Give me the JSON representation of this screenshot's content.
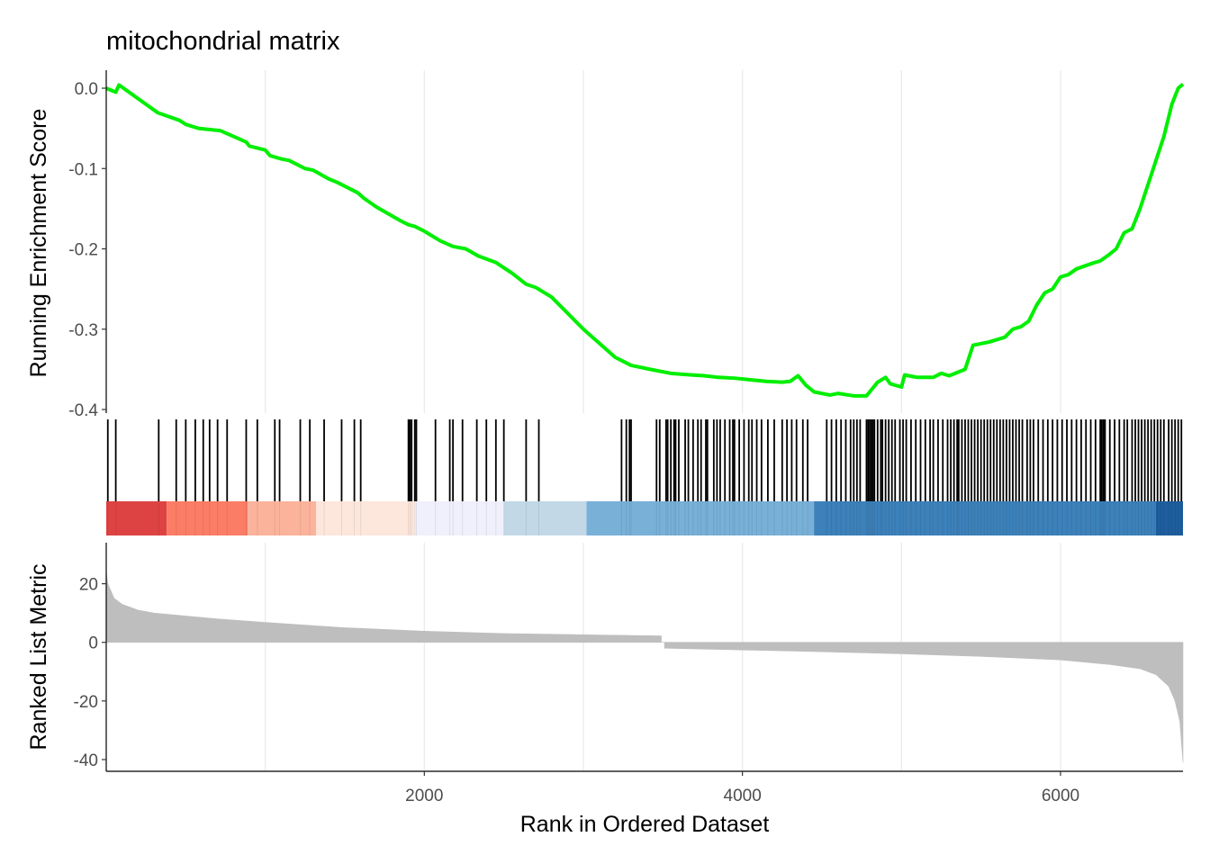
{
  "chart_data": {
    "type": "line",
    "title": "mitochondrial matrix",
    "xlabel": "Rank in Ordered Dataset",
    "xlim": [
      0,
      6770
    ],
    "x_ticks": [
      2000,
      4000,
      6000
    ],
    "x_tick_labels": [
      "2000",
      "4000",
      "6000"
    ],
    "grid": true,
    "panels": [
      {
        "name": "running-enrichment",
        "ylabel": "Running Enrichment Score",
        "ylim": [
          -0.4,
          0.0
        ],
        "y_ticks": [
          0.0,
          -0.1,
          -0.2,
          -0.3,
          -0.4
        ],
        "y_tick_labels": [
          "0.0",
          "-0.1",
          "-0.2",
          "-0.3",
          "-0.4"
        ],
        "series": [
          {
            "color": "#00ee00",
            "x": [
              0,
              60,
              80,
              320,
              330,
              460,
              500,
              580,
              720,
              800,
              880,
              900,
              1000,
              1030,
              1100,
              1150,
              1250,
              1300,
              1400,
              1450,
              1580,
              1620,
              1700,
              1850,
              1900,
              1940,
              2000,
              2100,
              2180,
              2260,
              2340,
              2450,
              2550,
              2640,
              2700,
              2800,
              2900,
              3000,
              3200,
              3300,
              3420,
              3550,
              3680,
              3760,
              3850,
              3950,
              4050,
              4150,
              4250,
              4300,
              4350,
              4400,
              4450,
              4550,
              4600,
              4700,
              4780,
              4850,
              4900,
              4930,
              5000,
              5020,
              5100,
              5200,
              5250,
              5300,
              5400,
              5450,
              5500,
              5550,
              5650,
              5700,
              5750,
              5800,
              5850,
              5900,
              5950,
              6000,
              6050,
              6100,
              6200,
              6250,
              6300,
              6350,
              6400,
              6450,
              6500,
              6550,
              6600,
              6650,
              6700,
              6740,
              6770
            ],
            "y": [
              0.0,
              -0.005,
              0.004,
              -0.03,
              -0.031,
              -0.04,
              -0.045,
              -0.05,
              -0.053,
              -0.06,
              -0.067,
              -0.072,
              -0.077,
              -0.084,
              -0.088,
              -0.09,
              -0.1,
              -0.102,
              -0.113,
              -0.117,
              -0.13,
              -0.137,
              -0.148,
              -0.165,
              -0.17,
              -0.172,
              -0.178,
              -0.19,
              -0.197,
              -0.2,
              -0.209,
              -0.217,
              -0.23,
              -0.244,
              -0.248,
              -0.26,
              -0.28,
              -0.3,
              -0.335,
              -0.345,
              -0.35,
              -0.355,
              -0.357,
              -0.358,
              -0.36,
              -0.361,
              -0.363,
              -0.365,
              -0.366,
              -0.365,
              -0.358,
              -0.37,
              -0.378,
              -0.382,
              -0.38,
              -0.383,
              -0.383,
              -0.366,
              -0.36,
              -0.368,
              -0.372,
              -0.357,
              -0.36,
              -0.36,
              -0.355,
              -0.358,
              -0.35,
              -0.32,
              -0.318,
              -0.316,
              -0.31,
              -0.3,
              -0.297,
              -0.29,
              -0.27,
              -0.255,
              -0.25,
              -0.235,
              -0.232,
              -0.225,
              -0.218,
              -0.215,
              -0.208,
              -0.2,
              -0.18,
              -0.175,
              -0.15,
              -0.12,
              -0.09,
              -0.06,
              -0.02,
              0.0,
              0.005
            ]
          }
        ]
      },
      {
        "name": "ranked-list-metric",
        "ylabel": "Ranked List Metric",
        "ylim": [
          -44,
          34
        ],
        "y_ticks": [
          20,
          0,
          -20,
          -40
        ],
        "y_tick_labels": [
          "20",
          "0",
          "-20",
          "-40"
        ],
        "series": [
          {
            "color": "#bebebe",
            "x": [
              0,
              10,
              50,
              100,
              200,
              300,
              400,
              500,
              700,
              1000,
              1500,
              2000,
              2500,
              3000,
              3490,
              3510,
              4000,
              4500,
              5000,
              5500,
              6000,
              6300,
              6500,
              6600,
              6680,
              6720,
              6750,
              6770
            ],
            "y": [
              24,
              20,
              15,
              13,
              11,
              10,
              9.5,
              9,
              8,
              6.8,
              5,
              3.8,
              3,
              2.6,
              2.2,
              -2,
              -2.6,
              -3.2,
              -3.9,
              -4.8,
              -6,
              -7.5,
              -9,
              -11,
              -15,
              -20,
              -27,
              -41
            ]
          }
        ]
      }
    ],
    "hits": [
      10,
      60,
      330,
      440,
      500,
      560,
      610,
      650,
      700,
      760,
      880,
      950,
      1060,
      1090,
      1220,
      1280,
      1370,
      1480,
      1560,
      1600,
      1900,
      1910,
      1920,
      1940,
      1950,
      2070,
      2160,
      2180,
      2240,
      2330,
      2390,
      2450,
      2500,
      2640,
      2720,
      3240,
      3270,
      3290,
      3300,
      3460,
      3480,
      3520,
      3530,
      3550,
      3570,
      3580,
      3600,
      3640,
      3660,
      3690,
      3720,
      3740,
      3770,
      3780,
      3820,
      3840,
      3860,
      3890,
      3920,
      3940,
      3950,
      3980,
      4010,
      4040,
      4060,
      4090,
      4120,
      4160,
      4200,
      4250,
      4280,
      4310,
      4340,
      4380,
      4410,
      4530,
      4560,
      4590,
      4620,
      4650,
      4680,
      4700,
      4720,
      4740,
      4780,
      4790,
      4800,
      4810,
      4820,
      4830,
      4850,
      4870,
      4880,
      4900,
      4920,
      4940,
      4960,
      4990,
      5010,
      5030,
      5060,
      5090,
      5120,
      5150,
      5180,
      5200,
      5230,
      5260,
      5290,
      5310,
      5330,
      5350,
      5360,
      5380,
      5400,
      5420,
      5440,
      5460,
      5480,
      5500,
      5520,
      5540,
      5560,
      5580,
      5600,
      5620,
      5640,
      5660,
      5680,
      5700,
      5720,
      5740,
      5760,
      5790,
      5810,
      5830,
      5860,
      5890,
      5920,
      5950,
      5980,
      6010,
      6040,
      6070,
      6100,
      6130,
      6160,
      6190,
      6220,
      6250,
      6260,
      6270,
      6280,
      6310,
      6340,
      6370,
      6400,
      6420,
      6450,
      6470,
      6490,
      6510,
      6530,
      6550,
      6570,
      6590,
      6610,
      6630,
      6650,
      6680,
      6700,
      6720,
      6740,
      6760
    ],
    "color_strip": [
      {
        "from": 0,
        "to": 380,
        "color": "#de4343"
      },
      {
        "from": 380,
        "to": 890,
        "color": "#fb7d66"
      },
      {
        "from": 890,
        "to": 1320,
        "color": "#fbb39c"
      },
      {
        "from": 1320,
        "to": 1940,
        "color": "#fde6dc"
      },
      {
        "from": 1940,
        "to": 2500,
        "color": "#eff0fb"
      },
      {
        "from": 2500,
        "to": 3020,
        "color": "#c2d8e7"
      },
      {
        "from": 3020,
        "to": 4450,
        "color": "#78b0d8"
      },
      {
        "from": 4450,
        "to": 6600,
        "color": "#3c81ba"
      },
      {
        "from": 6600,
        "to": 6770,
        "color": "#1f5e9f"
      }
    ]
  }
}
